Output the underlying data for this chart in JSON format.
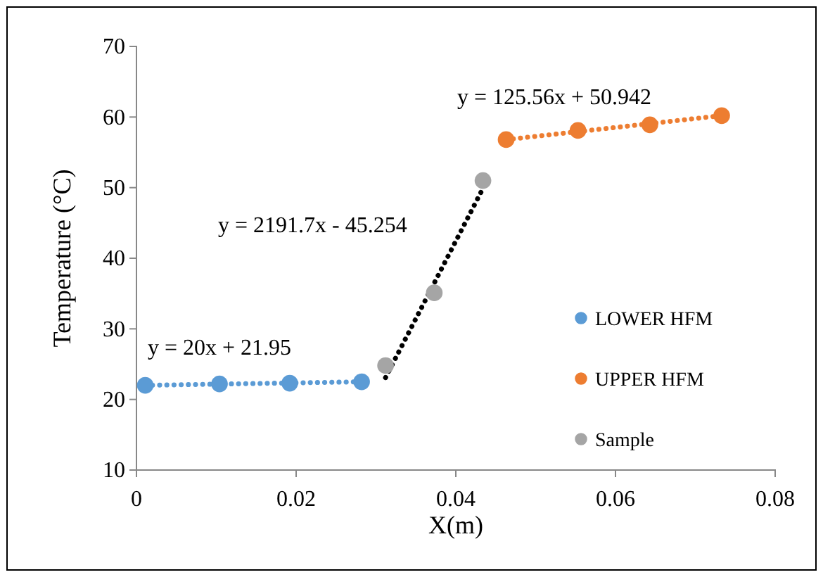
{
  "chart_data": {
    "type": "scatter",
    "xlabel": "X(m)",
    "ylabel": "Temperature (°C)",
    "xlim": [
      0,
      0.08
    ],
    "xticks": [
      0,
      0.02,
      0.04,
      0.06,
      0.08
    ],
    "ylim": [
      10,
      70
    ],
    "yticks": [
      10,
      20,
      30,
      40,
      50,
      60,
      70
    ],
    "grid": false,
    "legend": "right",
    "series": [
      {
        "name": "LOWER HFM",
        "color": "#5b9bd5",
        "marker": "circle",
        "x": [
          0.0011,
          0.0104,
          0.0192,
          0.0282
        ],
        "values": [
          22,
          22.2,
          22.3,
          22.5
        ]
      },
      {
        "name": "UPPER HFM",
        "color": "#ed7d31",
        "marker": "circle",
        "x": [
          0.0463,
          0.0553,
          0.0643,
          0.0733
        ],
        "values": [
          56.8,
          58.1,
          58.9,
          60.2
        ]
      },
      {
        "name": "Sample",
        "color": "#a5a5a5",
        "marker": "circle",
        "x": [
          0.0312,
          0.0373,
          0.0434
        ],
        "values": [
          24.8,
          35.1,
          51
        ]
      },
      {
        "type": "line",
        "line_style": "dotted",
        "marker": "none",
        "color": "#5b9bd5",
        "x": [
          0.0011,
          0.0282
        ],
        "values": [
          22,
          22.5
        ]
      },
      {
        "type": "line",
        "line_style": "dotted",
        "marker": "none",
        "color": "#ed7d31",
        "x": [
          0.0463,
          0.0733
        ],
        "values": [
          56.8,
          60.2
        ]
      },
      {
        "type": "line",
        "line_style": "dotted",
        "marker": "none",
        "color": "#000000",
        "x": [
          0.0312,
          0.0434
        ],
        "values": [
          23.1,
          49.9
        ]
      }
    ],
    "annotations": [
      "y = 20x + 21.95",
      "y = 125.56x + 50.942",
      "y = 2191.7x - 45.254"
    ]
  }
}
